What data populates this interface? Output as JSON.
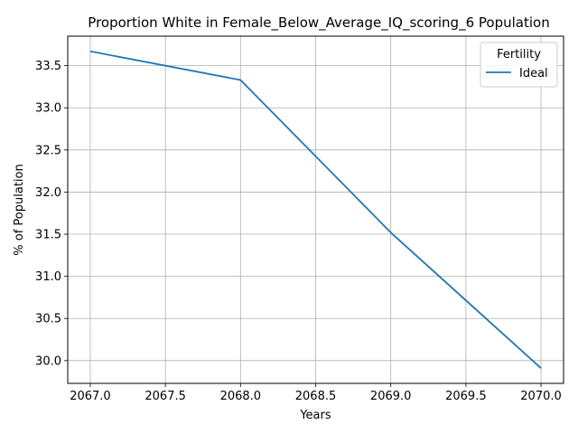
{
  "chart_data": {
    "type": "line",
    "title": "Proportion White in Female_Below_Average_IQ_scoring_6 Population",
    "xlabel": "Years",
    "ylabel": "% of Population",
    "x": [
      2067,
      2068,
      2069,
      2070
    ],
    "series": [
      {
        "name": "Ideal",
        "color": "#1f77b4",
        "values": [
          33.67,
          33.33,
          31.52,
          29.91
        ]
      }
    ],
    "xlim": [
      2066.85,
      2070.15
    ],
    "ylim": [
      29.73,
      33.85
    ],
    "xticks": [
      "2067.0",
      "2067.5",
      "2068.0",
      "2068.5",
      "2069.0",
      "2069.5",
      "2070.0"
    ],
    "yticks": [
      "30.0",
      "30.5",
      "31.0",
      "31.5",
      "32.0",
      "32.5",
      "33.0",
      "33.5"
    ],
    "grid": true,
    "legend": {
      "title": "Fertility",
      "position": "top-right"
    }
  }
}
